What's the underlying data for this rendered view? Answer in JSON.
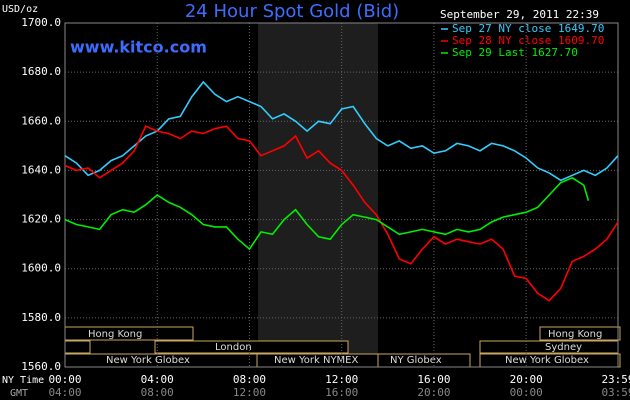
{
  "chart_data": {
    "type": "line",
    "title": "24 Hour Spot Gold (Bid)",
    "source": "www.kitco.com",
    "timestamp": "September 29, 2011 22:39",
    "y_label": "USD/oz",
    "x_label": "NY Time",
    "x2_label": "GMT",
    "xlim": [
      0,
      23.983
    ],
    "ylim": [
      1560,
      1700
    ],
    "xticks": [
      {
        "value": 0,
        "label": "00:00"
      },
      {
        "value": 4,
        "label": "04:00"
      },
      {
        "value": 8,
        "label": "08:00"
      },
      {
        "value": 12,
        "label": "12:00"
      },
      {
        "value": 16,
        "label": "16:00"
      },
      {
        "value": 20,
        "label": "20:00"
      },
      {
        "value": 23.983,
        "label": "23:59"
      }
    ],
    "x2ticks": [
      {
        "value": 0,
        "label": "04:00"
      },
      {
        "value": 4,
        "label": "08:00"
      },
      {
        "value": 8,
        "label": "12:00"
      },
      {
        "value": 12,
        "label": "16:00"
      },
      {
        "value": 16,
        "label": "20:00"
      },
      {
        "value": 20,
        "label": "00:00"
      },
      {
        "value": 23.983,
        "label": "03:59"
      }
    ],
    "yticks": [
      {
        "value": 1560,
        "label": "1560.0"
      },
      {
        "value": 1580,
        "label": "1580.0"
      },
      {
        "value": 1600,
        "label": "1600.0"
      },
      {
        "value": 1620,
        "label": "1620.0"
      },
      {
        "value": 1640,
        "label": "1640.0"
      },
      {
        "value": 1660,
        "label": "1660.0"
      },
      {
        "value": 1680,
        "label": "1680.0"
      },
      {
        "value": 1700,
        "label": "1700.0"
      }
    ],
    "grid": true,
    "sessions": [
      "Hong Kong",
      "Hong Kong",
      "London",
      "Sydney",
      "New York Globex",
      "New York NYMEX",
      "NY Globex",
      "New York Globex"
    ],
    "series": [
      {
        "name": "Sep 27 NY close 1649.70",
        "color": "#33ccff",
        "x": [
          0,
          0.5,
          1,
          1.5,
          2,
          2.5,
          3,
          3.5,
          4,
          4.5,
          5,
          5.5,
          6,
          6.5,
          7,
          7.5,
          8,
          8.5,
          9,
          9.5,
          10,
          10.5,
          11,
          11.5,
          12,
          12.5,
          13,
          13.5,
          14,
          14.5,
          15,
          15.5,
          16,
          16.5,
          17,
          17.5,
          18,
          18.5,
          19,
          19.5,
          20,
          20.5,
          21,
          21.5,
          22,
          22.5,
          23,
          23.5,
          23.983
        ],
        "values": [
          1646,
          1643,
          1638,
          1640,
          1644,
          1646,
          1650,
          1654,
          1656,
          1661,
          1662,
          1670,
          1676,
          1671,
          1668,
          1670,
          1668,
          1666,
          1661,
          1663,
          1660,
          1656,
          1660,
          1659,
          1665,
          1666,
          1659,
          1653,
          1650,
          1652,
          1649,
          1650,
          1647,
          1648,
          1651,
          1650,
          1648,
          1651,
          1650,
          1648,
          1645,
          1641,
          1639,
          1636,
          1638,
          1640,
          1638,
          1641,
          1646
        ]
      },
      {
        "name": "Sep 28 NY close 1609.70",
        "color": "#ff0000",
        "x": [
          0,
          0.5,
          1,
          1.5,
          2,
          2.5,
          3,
          3.5,
          4,
          4.5,
          5,
          5.5,
          6,
          6.5,
          7,
          7.5,
          8,
          8.5,
          9,
          9.5,
          10,
          10.5,
          11,
          11.5,
          12,
          12.5,
          13,
          13.5,
          14,
          14.5,
          15,
          15.5,
          16,
          16.5,
          17,
          17.5,
          18,
          18.5,
          19,
          19.5,
          20,
          20.5,
          21,
          21.5,
          22,
          22.5,
          23,
          23.5,
          23.983
        ],
        "values": [
          1642,
          1640,
          1641,
          1637,
          1640,
          1643,
          1648,
          1658,
          1656,
          1655,
          1653,
          1656,
          1655,
          1657,
          1658,
          1653,
          1652,
          1646,
          1648,
          1650,
          1654,
          1645,
          1648,
          1643,
          1640,
          1634,
          1627,
          1622,
          1614,
          1604,
          1602,
          1608,
          1613,
          1610,
          1612,
          1611,
          1610,
          1612,
          1608,
          1597,
          1596,
          1590,
          1587,
          1592,
          1603,
          1605,
          1608,
          1612,
          1619
        ]
      },
      {
        "name": "Sep 29 Last 1627.70",
        "color": "#00ee00",
        "x": [
          0,
          0.5,
          1,
          1.5,
          2,
          2.5,
          3,
          3.5,
          4,
          4.5,
          5,
          5.5,
          6,
          6.5,
          7,
          7.5,
          8,
          8.5,
          9,
          9.5,
          10,
          10.5,
          11,
          11.5,
          12,
          12.5,
          13,
          13.5,
          14,
          14.5,
          15,
          15.5,
          16,
          16.5,
          17,
          17.5,
          18,
          18.5,
          19,
          19.5,
          20,
          20.5,
          21,
          21.5,
          22,
          22.5,
          22.7
        ],
        "values": [
          1620,
          1618,
          1617,
          1616,
          1622,
          1624,
          1623,
          1626,
          1630,
          1627,
          1625,
          1622,
          1618,
          1617,
          1617,
          1612,
          1608,
          1615,
          1614,
          1620,
          1624,
          1618,
          1613,
          1612,
          1618,
          1622,
          1621,
          1620,
          1617,
          1614,
          1615,
          1616,
          1615,
          1614,
          1616,
          1615,
          1616,
          1619,
          1621,
          1622,
          1623,
          1625,
          1630,
          1635,
          1637,
          1634,
          1627.7
        ]
      }
    ]
  }
}
